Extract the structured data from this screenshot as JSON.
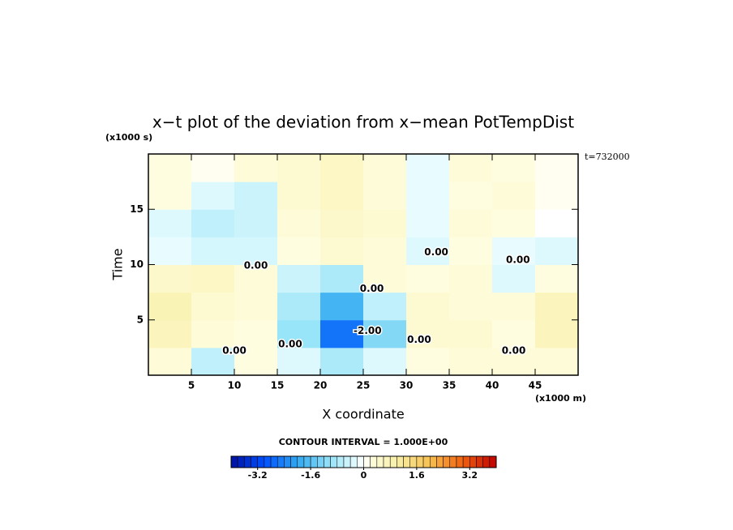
{
  "chart_data": {
    "type": "contour",
    "title": "x−t plot of the deviation from x−mean PotTempDist",
    "x_label": "X coordinate",
    "y_label": "Time",
    "x_unit": "(x1000 m)",
    "y_unit": "(x1000 s)",
    "time_note": "t=732000",
    "contour_interval": "CONTOUR INTERVAL = 1.000E+00",
    "xlim": [
      0,
      50
    ],
    "ylim": [
      0,
      20
    ],
    "xticks": [
      5,
      10,
      15,
      20,
      25,
      30,
      35,
      40,
      45
    ],
    "yticks": [
      5,
      10,
      15
    ],
    "x": [
      2.5,
      7.5,
      12.5,
      17.5,
      22.5,
      27.5,
      32.5,
      37.5,
      42.5,
      47.5
    ],
    "y": [
      1.25,
      3.75,
      6.25,
      8.75,
      11.25,
      13.75,
      16.25,
      18.75
    ],
    "z": [
      [
        0.3,
        -0.6,
        0.2,
        -0.3,
        -0.8,
        -0.3,
        0.2,
        0.3,
        0.3,
        0.3
      ],
      [
        0.7,
        0.3,
        0.2,
        -1.0,
        -2.6,
        -1.2,
        0.4,
        0.4,
        0.2,
        0.7
      ],
      [
        0.8,
        0.4,
        0.3,
        -0.8,
        -1.8,
        -0.6,
        0.4,
        0.3,
        0.3,
        0.7
      ],
      [
        0.5,
        0.6,
        0.3,
        -0.5,
        -0.8,
        0.3,
        0.2,
        0.3,
        -0.3,
        0.2
      ],
      [
        -0.2,
        -0.4,
        -0.4,
        0.2,
        0.4,
        0.3,
        -0.3,
        0.2,
        -0.2,
        -0.3
      ],
      [
        -0.3,
        -0.6,
        -0.5,
        0.3,
        0.5,
        0.4,
        -0.2,
        0.3,
        0.2,
        0
      ],
      [
        0.2,
        -0.3,
        -0.5,
        0.4,
        0.6,
        0.3,
        -0.2,
        0.2,
        0.3,
        0.1
      ],
      [
        0.2,
        0.1,
        0.3,
        0.4,
        0.6,
        0.3,
        -0.2,
        0.3,
        0.2,
        0.1
      ]
    ],
    "clim": [
      -4,
      4
    ],
    "levels": 40,
    "cticks": [
      -3.2,
      -1.6,
      0,
      1.6,
      3.2
    ],
    "colormap": [
      {
        "value": -4,
        "color": "#0010a0"
      },
      {
        "value": -3,
        "color": "#0050ff"
      },
      {
        "value": -2,
        "color": "#30a8f0"
      },
      {
        "value": -1,
        "color": "#98e4f8"
      },
      {
        "value": -0.2,
        "color": "#e8fcff"
      },
      {
        "value": 0,
        "color": "#ffffff"
      },
      {
        "value": 0.2,
        "color": "#fffde0"
      },
      {
        "value": 1,
        "color": "#f8f0a8"
      },
      {
        "value": 2,
        "color": "#f8c050"
      },
      {
        "value": 3,
        "color": "#f06010"
      },
      {
        "value": 4,
        "color": "#c00000"
      }
    ],
    "annotations": [
      {
        "text": "0.00",
        "x": 12.5,
        "y": 9.9
      },
      {
        "text": "0.00",
        "x": 26,
        "y": 7.8
      },
      {
        "text": "-2.00",
        "x": 25.5,
        "y": 4
      },
      {
        "text": "0.00",
        "x": 33.5,
        "y": 11.1
      },
      {
        "text": "0.00",
        "x": 43,
        "y": 10.4
      },
      {
        "text": "0.00",
        "x": 10,
        "y": 2.2
      },
      {
        "text": "0.00",
        "x": 16.5,
        "y": 2.8
      },
      {
        "text": "0.00",
        "x": 31.5,
        "y": 3.2
      },
      {
        "text": "0.00",
        "x": 42.5,
        "y": 2.2
      }
    ]
  }
}
